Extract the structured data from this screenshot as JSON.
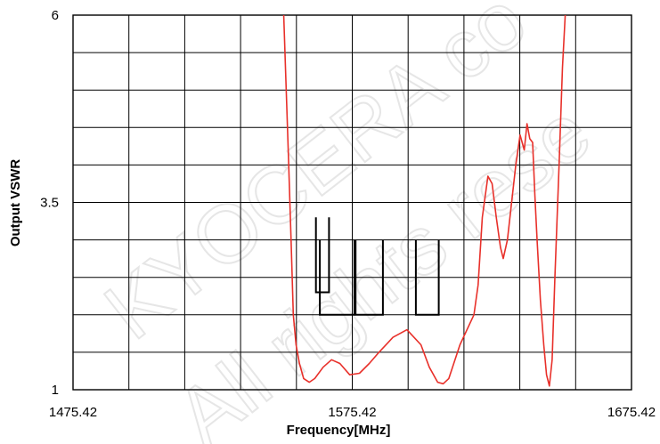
{
  "watermark": {
    "line1": "KYOCERA co",
    "line2": "All rights rese"
  },
  "chart_data": {
    "type": "line",
    "title": "",
    "xlabel": "Frequency[MHz]",
    "ylabel": "Output VSWR",
    "xlim": [
      1475.42,
      1675.42
    ],
    "ylim": [
      1,
      6
    ],
    "x_ticks": [
      "1475.42",
      "1575.42",
      "1675.42"
    ],
    "y_ticks": [
      "1",
      "3.5",
      "6"
    ],
    "grid": true,
    "grid_x_step": 20,
    "grid_y_step": 0.5,
    "series": [
      {
        "color": "#e8302a",
        "x": [
          1550.7,
          1551.5,
          1552.5,
          1553.5,
          1554.3,
          1555.3,
          1556.5,
          1558.0,
          1560.0,
          1562.0,
          1565.0,
          1568.0,
          1571.0,
          1574.5,
          1578.0,
          1581.5,
          1585.0,
          1590.0,
          1595.0,
          1600.0,
          1603.0,
          1606.0,
          1608.0,
          1610.0,
          1614.0,
          1619.0,
          1620.5,
          1622.0,
          1624.0,
          1625.5,
          1627.0,
          1628.5,
          1629.5,
          1631.0,
          1632.5,
          1634.0,
          1635.5,
          1637.0,
          1638.0,
          1639.0,
          1640.0,
          1640.8,
          1641.6,
          1642.8,
          1644.0,
          1645.0,
          1646.0,
          1647.0,
          1648.0,
          1649.5,
          1650.7,
          1651.7,
          1652.5,
          1653.5,
          1654.5
        ],
        "y": [
          6.2,
          5.3,
          4.2,
          3.0,
          2.0,
          1.6,
          1.35,
          1.15,
          1.1,
          1.15,
          1.3,
          1.4,
          1.35,
          1.2,
          1.22,
          1.35,
          1.5,
          1.7,
          1.8,
          1.6,
          1.3,
          1.1,
          1.08,
          1.15,
          1.6,
          2.0,
          2.4,
          3.3,
          3.85,
          3.75,
          3.3,
          2.9,
          2.75,
          3.0,
          3.5,
          4.0,
          4.4,
          4.2,
          4.55,
          4.35,
          4.3,
          3.6,
          3.0,
          2.2,
          1.6,
          1.2,
          1.05,
          1.4,
          2.5,
          4.0,
          5.3,
          6.0,
          6.2,
          6.3,
          6.4
        ]
      }
    ],
    "limit_segments": [
      {
        "x": [
          1562.4,
          1562.4,
          1567.1,
          1567.1
        ],
        "y": [
          3.3,
          2.3,
          2.3,
          3.3
        ]
      },
      {
        "x": [
          1563.8,
          1563.8,
          1576.2,
          1576.2
        ],
        "y": [
          3.0,
          2.0,
          2.0,
          3.0
        ]
      },
      {
        "x": [
          1576.6,
          1576.6,
          1586.4,
          1586.4
        ],
        "y": [
          3.0,
          2.0,
          2.0,
          3.0
        ]
      },
      {
        "x": [
          1598.2,
          1598.2,
          1606.4,
          1606.4
        ],
        "y": [
          3.0,
          2.0,
          2.0,
          3.0
        ]
      }
    ]
  }
}
